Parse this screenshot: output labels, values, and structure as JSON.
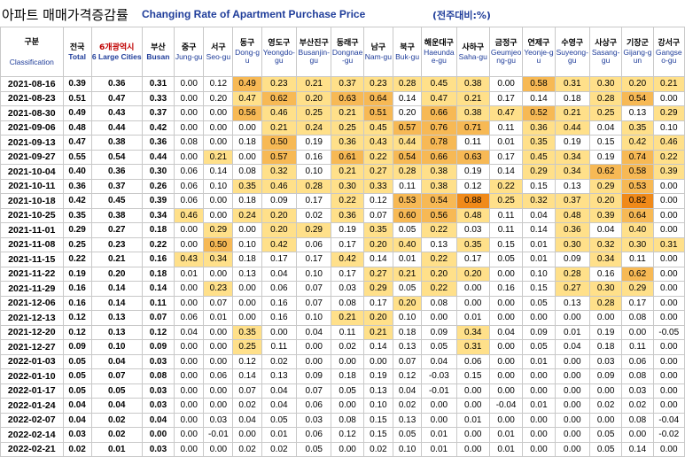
{
  "title": {
    "korean": "아파트 매매가격증감률",
    "english": "Changing Rate of Apartment Purchase Price",
    "unit": "(전주대비:%)"
  },
  "header": {
    "classification_ko": "구분",
    "classification_en": "Classification",
    "columns": [
      {
        "ko": "전국",
        "en": "Total"
      },
      {
        "ko": "6개광역시",
        "en": "6 Large Cities"
      },
      {
        "ko": "부산",
        "en": "Busan"
      },
      {
        "ko": "중구",
        "en": "Jung-gu"
      },
      {
        "ko": "서구",
        "en": "Seo-gu"
      },
      {
        "ko": "동구",
        "en": "Dong-gu"
      },
      {
        "ko": "영도구",
        "en": "Yeongdo-gu"
      },
      {
        "ko": "부산진구",
        "en": "Busanjin-gu"
      },
      {
        "ko": "동래구",
        "en": "Dongnae-gu"
      },
      {
        "ko": "남구",
        "en": "Nam-gu"
      },
      {
        "ko": "북구",
        "en": "Buk-gu"
      },
      {
        "ko": "해운대구",
        "en": "Haeundae-gu"
      },
      {
        "ko": "사하구",
        "en": "Saha-gu"
      },
      {
        "ko": "금정구",
        "en": "Geumjeong-gu"
      },
      {
        "ko": "연제구",
        "en": "Yeonje-gu"
      },
      {
        "ko": "수영구",
        "en": "Suyeong-gu"
      },
      {
        "ko": "사상구",
        "en": "Sasang-gu"
      },
      {
        "ko": "기장군",
        "en": "Gijang-gun"
      },
      {
        "ko": "강서구",
        "en": "Gangseo-gu"
      }
    ]
  },
  "highlight_colors": {
    "light": "#ffe08a",
    "medium": "#f7b955",
    "strong": "#f08a1a"
  },
  "rows": [
    {
      "date": "2021-08-16",
      "v": [
        "0.39",
        "0.36",
        "0.31",
        "0.00",
        "0.12",
        "0.49",
        "0.23",
        "0.21",
        "0.37",
        "0.23",
        "0.28",
        "0.45",
        "0.38",
        "0.00",
        "0.58",
        "0.31",
        "0.30",
        "0.20",
        "0.21"
      ],
      "h": [
        "",
        "",
        "",
        "",
        "",
        "m",
        "l",
        "l",
        "l",
        "l",
        "l",
        "l",
        "l",
        "",
        "m",
        "l",
        "l",
        "l",
        "l"
      ]
    },
    {
      "date": "2021-08-23",
      "v": [
        "0.51",
        "0.47",
        "0.33",
        "0.00",
        "0.20",
        "0.47",
        "0.62",
        "0.20",
        "0.63",
        "0.64",
        "0.14",
        "0.47",
        "0.21",
        "0.17",
        "0.14",
        "0.18",
        "0.28",
        "0.54",
        "0.00"
      ],
      "h": [
        "",
        "",
        "",
        "",
        "",
        "l",
        "m",
        "l",
        "m",
        "m",
        "",
        "l",
        "l",
        "",
        "",
        "",
        "l",
        "m",
        ""
      ]
    },
    {
      "date": "2021-08-30",
      "v": [
        "0.49",
        "0.43",
        "0.37",
        "0.00",
        "0.00",
        "0.56",
        "0.46",
        "0.25",
        "0.21",
        "0.51",
        "0.20",
        "0.66",
        "0.38",
        "0.47",
        "0.52",
        "0.21",
        "0.25",
        "0.13",
        "0.29"
      ],
      "h": [
        "",
        "",
        "",
        "",
        "",
        "m",
        "l",
        "l",
        "l",
        "m",
        "",
        "m",
        "l",
        "l",
        "m",
        "l",
        "l",
        "",
        "l"
      ]
    },
    {
      "date": "2021-09-06",
      "v": [
        "0.48",
        "0.44",
        "0.42",
        "0.00",
        "0.00",
        "0.00",
        "0.21",
        "0.24",
        "0.25",
        "0.45",
        "0.57",
        "0.76",
        "0.71",
        "0.11",
        "0.36",
        "0.44",
        "0.04",
        "0.35",
        "0.10"
      ],
      "h": [
        "",
        "",
        "",
        "",
        "",
        "",
        "l",
        "l",
        "l",
        "l",
        "m",
        "m",
        "m",
        "",
        "l",
        "l",
        "",
        "l",
        ""
      ]
    },
    {
      "date": "2021-09-13",
      "v": [
        "0.47",
        "0.38",
        "0.36",
        "0.08",
        "0.00",
        "0.18",
        "0.50",
        "0.19",
        "0.36",
        "0.43",
        "0.44",
        "0.78",
        "0.11",
        "0.01",
        "0.35",
        "0.19",
        "0.15",
        "0.42",
        "0.46"
      ],
      "h": [
        "",
        "",
        "",
        "",
        "",
        "",
        "m",
        "",
        "l",
        "l",
        "l",
        "m",
        "",
        "",
        "l",
        "",
        "",
        "l",
        "l"
      ]
    },
    {
      "date": "2021-09-27",
      "v": [
        "0.55",
        "0.54",
        "0.44",
        "0.00",
        "0.21",
        "0.00",
        "0.57",
        "0.16",
        "0.61",
        "0.22",
        "0.54",
        "0.66",
        "0.63",
        "0.17",
        "0.45",
        "0.34",
        "0.19",
        "0.74",
        "0.22"
      ],
      "h": [
        "",
        "",
        "",
        "",
        "l",
        "",
        "m",
        "",
        "m",
        "l",
        "m",
        "m",
        "m",
        "",
        "l",
        "l",
        "",
        "m",
        "l"
      ]
    },
    {
      "date": "2021-10-04",
      "v": [
        "0.40",
        "0.36",
        "0.30",
        "0.06",
        "0.14",
        "0.08",
        "0.32",
        "0.10",
        "0.21",
        "0.27",
        "0.28",
        "0.38",
        "0.19",
        "0.14",
        "0.29",
        "0.34",
        "0.62",
        "0.58",
        "0.39"
      ],
      "h": [
        "",
        "",
        "",
        "",
        "",
        "",
        "l",
        "",
        "l",
        "l",
        "l",
        "l",
        "",
        "",
        "l",
        "l",
        "m",
        "m",
        "l"
      ]
    },
    {
      "date": "2021-10-11",
      "v": [
        "0.36",
        "0.37",
        "0.26",
        "0.06",
        "0.10",
        "0.35",
        "0.46",
        "0.28",
        "0.30",
        "0.33",
        "0.11",
        "0.38",
        "0.12",
        "0.22",
        "0.15",
        "0.13",
        "0.29",
        "0.53",
        "0.00"
      ],
      "h": [
        "",
        "",
        "",
        "",
        "",
        "l",
        "l",
        "l",
        "l",
        "l",
        "",
        "l",
        "",
        "l",
        "",
        "",
        "l",
        "m",
        ""
      ]
    },
    {
      "date": "2021-10-18",
      "v": [
        "0.42",
        "0.45",
        "0.39",
        "0.06",
        "0.00",
        "0.18",
        "0.09",
        "0.17",
        "0.22",
        "0.12",
        "0.53",
        "0.54",
        "0.88",
        "0.25",
        "0.32",
        "0.37",
        "0.20",
        "0.82",
        "0.00"
      ],
      "h": [
        "",
        "",
        "",
        "",
        "",
        "",
        "",
        "",
        "l",
        "",
        "m",
        "m",
        "r",
        "l",
        "l",
        "l",
        "l",
        "r",
        ""
      ]
    },
    {
      "date": "2021-10-25",
      "v": [
        "0.35",
        "0.38",
        "0.34",
        "0.46",
        "0.00",
        "0.24",
        "0.20",
        "0.02",
        "0.36",
        "0.07",
        "0.60",
        "0.56",
        "0.48",
        "0.11",
        "0.04",
        "0.48",
        "0.39",
        "0.64",
        "0.00"
      ],
      "h": [
        "",
        "",
        "",
        "l",
        "",
        "l",
        "l",
        "",
        "l",
        "",
        "m",
        "m",
        "l",
        "",
        "",
        "l",
        "l",
        "m",
        ""
      ]
    },
    {
      "date": "2021-11-01",
      "v": [
        "0.29",
        "0.27",
        "0.18",
        "0.00",
        "0.29",
        "0.00",
        "0.20",
        "0.29",
        "0.19",
        "0.35",
        "0.05",
        "0.22",
        "0.03",
        "0.11",
        "0.14",
        "0.36",
        "0.04",
        "0.40",
        "0.00"
      ],
      "h": [
        "",
        "",
        "",
        "",
        "l",
        "",
        "l",
        "l",
        "",
        "l",
        "",
        "l",
        "",
        "",
        "",
        "l",
        "",
        "l",
        ""
      ]
    },
    {
      "date": "2021-11-08",
      "v": [
        "0.25",
        "0.23",
        "0.22",
        "0.00",
        "0.50",
        "0.10",
        "0.42",
        "0.06",
        "0.17",
        "0.20",
        "0.40",
        "0.13",
        "0.35",
        "0.15",
        "0.01",
        "0.30",
        "0.32",
        "0.30",
        "0.31"
      ],
      "h": [
        "",
        "",
        "",
        "",
        "m",
        "",
        "l",
        "",
        "",
        "l",
        "l",
        "",
        "l",
        "",
        "",
        "l",
        "l",
        "l",
        "l"
      ]
    },
    {
      "date": "2021-11-15",
      "v": [
        "0.22",
        "0.21",
        "0.16",
        "0.43",
        "0.34",
        "0.18",
        "0.17",
        "0.17",
        "0.42",
        "0.14",
        "0.01",
        "0.22",
        "0.17",
        "0.05",
        "0.01",
        "0.09",
        "0.34",
        "0.11",
        "0.00"
      ],
      "h": [
        "",
        "",
        "",
        "l",
        "l",
        "",
        "",
        "",
        "l",
        "",
        "",
        "l",
        "",
        "",
        "",
        "",
        "l",
        "",
        ""
      ]
    },
    {
      "date": "2021-11-22",
      "v": [
        "0.19",
        "0.20",
        "0.18",
        "0.01",
        "0.00",
        "0.13",
        "0.04",
        "0.10",
        "0.17",
        "0.27",
        "0.21",
        "0.20",
        "0.20",
        "0.00",
        "0.10",
        "0.28",
        "0.16",
        "0.62",
        "0.00"
      ],
      "h": [
        "",
        "",
        "",
        "",
        "",
        "",
        "",
        "",
        "",
        "l",
        "l",
        "l",
        "l",
        "",
        "",
        "l",
        "",
        "m",
        ""
      ]
    },
    {
      "date": "2021-11-29",
      "v": [
        "0.16",
        "0.14",
        "0.14",
        "0.00",
        "0.23",
        "0.00",
        "0.06",
        "0.07",
        "0.03",
        "0.29",
        "0.05",
        "0.22",
        "0.00",
        "0.16",
        "0.15",
        "0.27",
        "0.30",
        "0.29",
        "0.00"
      ],
      "h": [
        "",
        "",
        "",
        "",
        "l",
        "",
        "",
        "",
        "",
        "l",
        "",
        "l",
        "",
        "",
        "",
        "l",
        "l",
        "l",
        ""
      ]
    },
    {
      "date": "2021-12-06",
      "v": [
        "0.16",
        "0.14",
        "0.11",
        "0.00",
        "0.07",
        "0.00",
        "0.16",
        "0.07",
        "0.08",
        "0.17",
        "0.20",
        "0.08",
        "0.00",
        "0.00",
        "0.05",
        "0.13",
        "0.28",
        "0.17",
        "0.00"
      ],
      "h": [
        "",
        "",
        "",
        "",
        "",
        "",
        "",
        "",
        "",
        "",
        "l",
        "",
        "",
        "",
        "",
        "",
        "l",
        "",
        ""
      ]
    },
    {
      "date": "2021-12-13",
      "v": [
        "0.12",
        "0.13",
        "0.07",
        "0.06",
        "0.01",
        "0.00",
        "0.16",
        "0.10",
        "0.21",
        "0.20",
        "0.10",
        "0.00",
        "0.01",
        "0.00",
        "0.00",
        "0.00",
        "0.00",
        "0.08",
        "0.00"
      ],
      "h": [
        "",
        "",
        "",
        "",
        "",
        "",
        "",
        "",
        "l",
        "l",
        "",
        "",
        "",
        "",
        "",
        "",
        "",
        "",
        ""
      ]
    },
    {
      "date": "2021-12-20",
      "v": [
        "0.12",
        "0.13",
        "0.12",
        "0.04",
        "0.00",
        "0.35",
        "0.00",
        "0.04",
        "0.11",
        "0.21",
        "0.18",
        "0.09",
        "0.34",
        "0.04",
        "0.09",
        "0.01",
        "0.19",
        "0.00",
        "-0.05"
      ],
      "h": [
        "",
        "",
        "",
        "",
        "",
        "l",
        "",
        "",
        "",
        "l",
        "",
        "",
        "l",
        "",
        "",
        "",
        "",
        "",
        ""
      ]
    },
    {
      "date": "2021-12-27",
      "v": [
        "0.09",
        "0.10",
        "0.09",
        "0.00",
        "0.00",
        "0.25",
        "0.11",
        "0.00",
        "0.02",
        "0.14",
        "0.13",
        "0.05",
        "0.31",
        "0.00",
        "0.05",
        "0.04",
        "0.18",
        "0.11",
        "0.00"
      ],
      "h": [
        "",
        "",
        "",
        "",
        "",
        "l",
        "",
        "",
        "",
        "",
        "",
        "",
        "l",
        "",
        "",
        "",
        "",
        "",
        ""
      ]
    },
    {
      "date": "2022-01-03",
      "v": [
        "0.05",
        "0.04",
        "0.03",
        "0.00",
        "0.00",
        "0.12",
        "0.02",
        "0.00",
        "0.00",
        "0.00",
        "0.07",
        "0.04",
        "0.06",
        "0.00",
        "0.01",
        "0.00",
        "0.03",
        "0.06",
        "0.00"
      ],
      "h": [
        "",
        "",
        "",
        "",
        "",
        "",
        "",
        "",
        "",
        "",
        "",
        "",
        "",
        "",
        "",
        "",
        "",
        "",
        ""
      ]
    },
    {
      "date": "2022-01-10",
      "v": [
        "0.05",
        "0.07",
        "0.08",
        "0.00",
        "0.06",
        "0.14",
        "0.13",
        "0.09",
        "0.18",
        "0.19",
        "0.12",
        "-0.03",
        "0.15",
        "0.00",
        "0.00",
        "0.00",
        "0.09",
        "0.08",
        "0.00"
      ],
      "h": [
        "",
        "",
        "",
        "",
        "",
        "",
        "",
        "",
        "",
        "",
        "",
        "",
        "",
        "",
        "",
        "",
        "",
        "",
        ""
      ]
    },
    {
      "date": "2022-01-17",
      "v": [
        "0.05",
        "0.05",
        "0.03",
        "0.00",
        "0.00",
        "0.07",
        "0.04",
        "0.07",
        "0.05",
        "0.13",
        "0.04",
        "-0.01",
        "0.00",
        "0.00",
        "0.00",
        "0.00",
        "0.00",
        "0.03",
        "0.00"
      ],
      "h": [
        "",
        "",
        "",
        "",
        "",
        "",
        "",
        "",
        "",
        "",
        "",
        "",
        "",
        "",
        "",
        "",
        "",
        "",
        ""
      ]
    },
    {
      "date": "2022-01-24",
      "v": [
        "0.04",
        "0.04",
        "0.03",
        "0.00",
        "0.00",
        "0.02",
        "0.04",
        "0.06",
        "0.00",
        "0.10",
        "0.02",
        "0.00",
        "0.00",
        "-0.04",
        "0.01",
        "0.00",
        "0.02",
        "0.02",
        "0.00"
      ],
      "h": [
        "",
        "",
        "",
        "",
        "",
        "",
        "",
        "",
        "",
        "",
        "",
        "",
        "",
        "",
        "",
        "",
        "",
        "",
        ""
      ]
    },
    {
      "date": "2022-02-07",
      "v": [
        "0.04",
        "0.02",
        "0.04",
        "0.00",
        "0.03",
        "0.04",
        "0.05",
        "0.03",
        "0.08",
        "0.15",
        "0.13",
        "0.00",
        "0.01",
        "0.00",
        "0.00",
        "0.00",
        "0.00",
        "0.08",
        "-0.04"
      ],
      "h": [
        "",
        "",
        "",
        "",
        "",
        "",
        "",
        "",
        "",
        "",
        "",
        "",
        "",
        "",
        "",
        "",
        "",
        "",
        ""
      ]
    },
    {
      "date": "2022-02-14",
      "v": [
        "0.03",
        "0.02",
        "0.00",
        "0.00",
        "-0.01",
        "0.00",
        "0.01",
        "0.06",
        "0.12",
        "0.15",
        "0.05",
        "0.01",
        "0.00",
        "0.01",
        "0.00",
        "0.00",
        "0.05",
        "0.00",
        "-0.02"
      ],
      "h": [
        "",
        "",
        "",
        "",
        "",
        "",
        "",
        "",
        "",
        "",
        "",
        "",
        "",
        "",
        "",
        "",
        "",
        "",
        ""
      ]
    },
    {
      "date": "2022-02-21",
      "v": [
        "0.02",
        "0.01",
        "0.03",
        "0.00",
        "0.00",
        "0.02",
        "0.02",
        "0.05",
        "0.00",
        "0.02",
        "0.10",
        "0.01",
        "0.00",
        "0.01",
        "0.00",
        "0.00",
        "0.05",
        "0.14",
        "0.00"
      ],
      "h": [
        "",
        "",
        "",
        "",
        "",
        "",
        "",
        "",
        "",
        "",
        "",
        "",
        "",
        "",
        "",
        "",
        "",
        "",
        ""
      ]
    }
  ]
}
